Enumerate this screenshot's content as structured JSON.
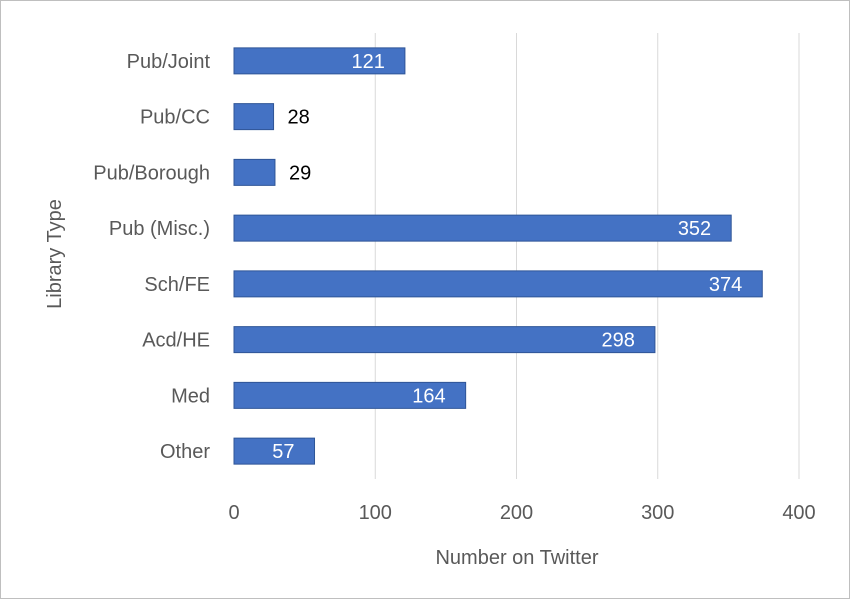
{
  "chart_data": {
    "type": "bar",
    "orientation": "horizontal",
    "categories": [
      "Pub/Joint",
      "Pub/CC",
      "Pub/Borough",
      "Pub (Misc.)",
      "Sch/FE",
      "Acd/HE",
      "Med",
      "Other"
    ],
    "values": [
      121,
      28,
      29,
      352,
      374,
      298,
      164,
      57
    ],
    "value_labels": [
      "121",
      "28",
      "29",
      "352",
      "374",
      "298",
      "164",
      "57"
    ],
    "xlabel": "Number on Twitter",
    "ylabel": "Library Type",
    "xlim": [
      0,
      400
    ],
    "xticks": [
      "0",
      "100",
      "200",
      "300",
      "400"
    ],
    "grid": "vertical",
    "colors": {
      "bar": "#4472c4",
      "bar_edge": "#2f5597",
      "grid": "#d9d9d9"
    }
  }
}
